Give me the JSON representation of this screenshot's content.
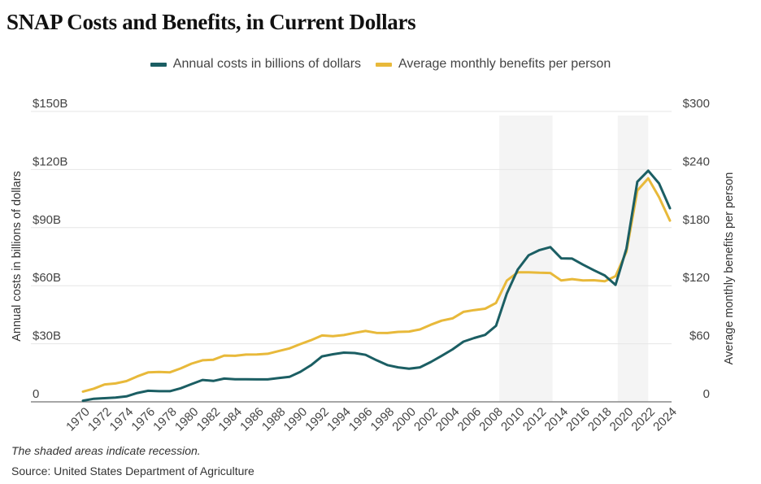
{
  "chart_data": {
    "type": "line",
    "title": "SNAP Costs and Benefits, in Current Dollars",
    "xlabel": "",
    "ylabel": "Annual costs in billions of dollars",
    "ylabel_right": "Average monthly benefits per person",
    "x": [
      1970,
      1971,
      1972,
      1973,
      1974,
      1975,
      1976,
      1977,
      1978,
      1979,
      1980,
      1981,
      1982,
      1983,
      1984,
      1985,
      1986,
      1987,
      1988,
      1989,
      1990,
      1991,
      1992,
      1993,
      1994,
      1995,
      1996,
      1997,
      1998,
      1999,
      2000,
      2001,
      2002,
      2003,
      2004,
      2005,
      2006,
      2007,
      2008,
      2009,
      2010,
      2011,
      2012,
      2013,
      2014,
      2015,
      2016,
      2017,
      2018,
      2019,
      2020,
      2021,
      2022,
      2023,
      2024
    ],
    "x_tick_labels": [
      "1970",
      "1972",
      "1974",
      "1976",
      "1978",
      "1980",
      "1982",
      "1984",
      "1986",
      "1988",
      "1990",
      "1992",
      "1994",
      "1996",
      "1998",
      "2000",
      "2002",
      "2004",
      "2006",
      "2008",
      "2010",
      "2012",
      "2014",
      "2016",
      "2018",
      "2020",
      "2022",
      "2024"
    ],
    "series": [
      {
        "name": "Annual costs in billions of dollars",
        "axis": "left",
        "color": "#1b5e63",
        "values": [
          0.6,
          1.6,
          1.9,
          2.2,
          2.8,
          4.6,
          5.7,
          5.5,
          5.5,
          7.0,
          9.2,
          11.3,
          10.8,
          12.0,
          11.7,
          11.7,
          11.6,
          11.6,
          12.3,
          12.9,
          15.5,
          19.0,
          23.5,
          24.6,
          25.4,
          25.2,
          24.3,
          21.5,
          19.0,
          17.8,
          17.1,
          17.8,
          20.6,
          23.8,
          27.1,
          31.1,
          33.0,
          34.6,
          39.3,
          56.0,
          68.3,
          75.7,
          78.4,
          79.9,
          74.1,
          74.0,
          70.9,
          68.0,
          65.3,
          60.4,
          79.2,
          113.7,
          119.4,
          112.8,
          100.0
        ]
      },
      {
        "name": "Average monthly benefits per person",
        "axis": "right",
        "color": "#e8b93a",
        "values": [
          10.6,
          13.6,
          18.0,
          19.0,
          21.4,
          26.3,
          30.4,
          30.8,
          30.5,
          34.5,
          39.5,
          42.9,
          43.5,
          47.8,
          47.6,
          48.8,
          49.0,
          49.7,
          52.4,
          55.2,
          59.7,
          63.8,
          68.6,
          67.9,
          69.0,
          71.3,
          73.2,
          71.3,
          71.1,
          72.3,
          72.6,
          74.8,
          79.7,
          83.9,
          86.2,
          92.9,
          94.8,
          96.2,
          102.2,
          125.3,
          133.8,
          133.9,
          133.4,
          133.1,
          125.4,
          126.8,
          125.5,
          125.6,
          124.5,
          129.8,
          155.1,
          218.2,
          230.9,
          211.4,
          187.2
        ]
      }
    ],
    "left_axis": {
      "ylim": [
        0,
        150
      ],
      "ticks": [
        0,
        30,
        60,
        90,
        120,
        150
      ],
      "tick_labels": [
        "0",
        "$30B",
        "$60B",
        "$90B",
        "$120B",
        "$150B"
      ]
    },
    "right_axis": {
      "ylim": [
        0,
        300
      ],
      "ticks": [
        0,
        60,
        120,
        180,
        240,
        300
      ],
      "tick_labels": [
        "0",
        "$60",
        "$120",
        "$180",
        "$240",
        "$300"
      ]
    },
    "recessions": [
      [
        2008.3,
        2013.2
      ],
      [
        2019.2,
        2022.0
      ]
    ],
    "grid": true,
    "legend_position": "top-center",
    "notes": [
      "The shaded areas indicate recession.",
      "Source: United States Department of Agriculture"
    ]
  },
  "title": "SNAP Costs and Benefits, in Current Dollars",
  "legend": [
    {
      "label": "Annual costs in billions of dollars",
      "color": "#1b5e63"
    },
    {
      "label": "Average monthly benefits per person",
      "color": "#e8b93a"
    }
  ],
  "footer": {
    "note": "The shaded areas indicate recession.",
    "source": "Source: United States Department of Agriculture"
  }
}
